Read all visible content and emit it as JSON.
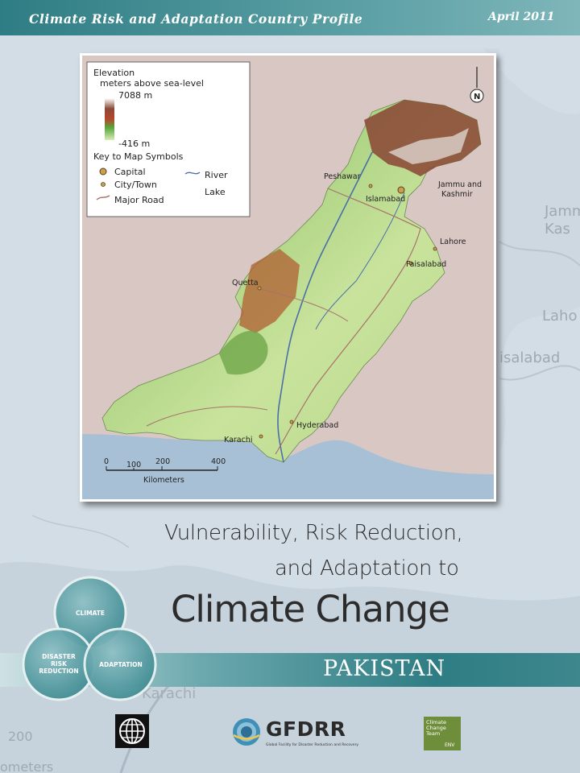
{
  "header": {
    "series_title": "Climate Risk and Adaptation Country Profile",
    "date": "April 2011"
  },
  "map": {
    "legend": {
      "title": "Elevation",
      "subtitle": "meters above sea-level",
      "max": "7088 m",
      "min": "-416 m",
      "key_title": "Key to Map Symbols",
      "capital": "Capital",
      "city": "City/Town",
      "road": "Major Road",
      "river": "River",
      "lake": "Lake"
    },
    "north": "N",
    "cities": {
      "peshawar": "Peshawar",
      "islamabad": "Islamabad",
      "jammu_line1": "Jammu and",
      "jammu_line2": "Kashmir",
      "lahore": "Lahore",
      "faisalabad": "Faisalabad",
      "quetta": "Quetta",
      "hyderabad": "Hyderabad",
      "karachi": "Karachi"
    },
    "scale": {
      "t0": "0",
      "t1": "100",
      "t2": "200",
      "t3": "400",
      "unit": "Kilometers"
    }
  },
  "background_map": {
    "jammu": "Jamm",
    "kas": "Kas",
    "lahore": "Laho",
    "faisalabad": "isalabad",
    "karachi": "Karachi",
    "scale_200": "200",
    "kilometers": "ometers"
  },
  "title": {
    "line1": "Vulnerability, Risk Reduction,",
    "line2": "and Adaptation to",
    "line3": "Climate Change"
  },
  "circles": {
    "climate": "CLIMATE",
    "drr_1": "DISASTER",
    "drr_2": "RISK",
    "drr_3": "REDUCTION",
    "adaptation": "ADAPTATION"
  },
  "country": "PAKISTAN",
  "logos": {
    "gfdrr": "GFDRR",
    "gfdrr_sub": "Global Facility for Disaster Reduction and Recovery",
    "cct_1": "Climate",
    "cct_2": "Change",
    "cct_3": "Team",
    "cct_env": "ENV"
  },
  "colors": {
    "teal": "#2f7d84",
    "background": "#d3dde5"
  }
}
